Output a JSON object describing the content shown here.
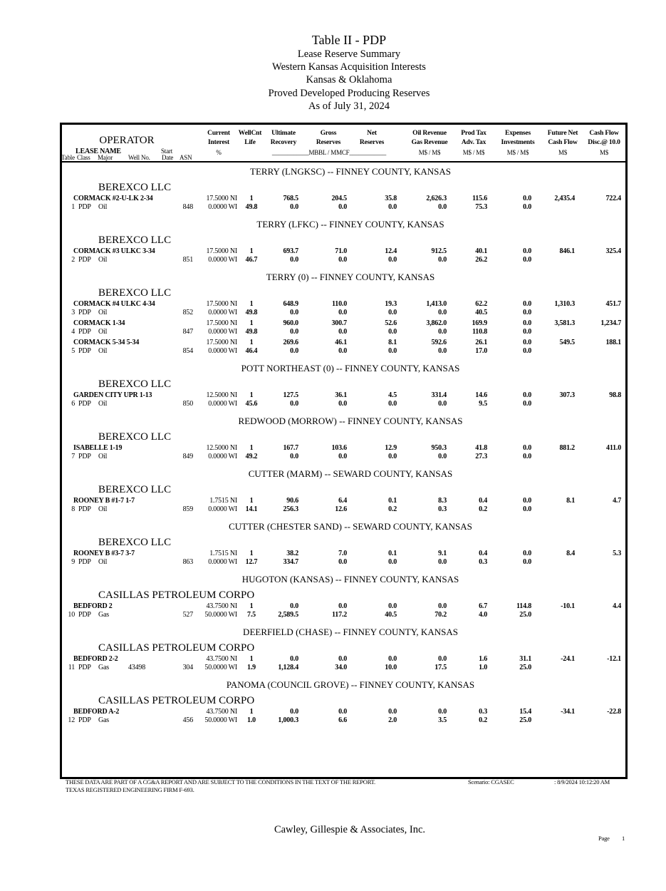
{
  "title": {
    "line1": "Table II - PDP",
    "line2": "Lease Reserve Summary",
    "line3": "Western Kansas Acquisition Interests",
    "line4": "Kansas & Oklahoma",
    "line5": "Proved Developed Producing Reserves",
    "line6": "As of July 31, 2024"
  },
  "header": {
    "operator": "OPERATOR",
    "lease_name": "LEASE  NAME",
    "start": "Start",
    "table": "Table",
    "class": "Class",
    "major": "Major",
    "well_no": "Well No.",
    "date": "Date",
    "asn": "ASN",
    "current": "Current",
    "interest": "Interest",
    "pct": "%",
    "wellcnt": "WellCnt",
    "life": "Life",
    "ultimate": "Ultimate",
    "recovery": "Recovery",
    "gross": "Gross",
    "reserves": "Reserves",
    "net": "Net",
    "net_reserves": "Reserves",
    "units": "____________MBBL / MMCF____________",
    "oil_rev": "Oil Revenue",
    "gas_rev": "Gas Revenue",
    "ms1": "M$ / M$",
    "prod_tax": "Prod Tax",
    "adv_tax": "Adv. Tax",
    "ms2": "M$ / M$",
    "expenses": "Expenses",
    "investments": "Investments",
    "ms3": "M$ / M$",
    "future_net": "Future Net",
    "cash_flow": "Cash Flow",
    "ms4": "M$",
    "cash_flow2": "Cash Flow",
    "disc": "Disc.@ 10.0",
    "ms5": "M$"
  },
  "sections": [
    {
      "field": "TERRY (LNGKSC) --  FINNEY COUNTY, KANSAS",
      "operator": "BEREXCO LLC",
      "wells": [
        {
          "name": "CORMACK #2-U-LK 2-34",
          "no": "1",
          "cls": "PDP",
          "major": "Oil",
          "wellno": "",
          "asn": "848",
          "ni": "17.5000  NI",
          "wi": "0.0000 WI",
          "cnt": "1",
          "life": "49.8",
          "ult": "768.5",
          "ult2": "0.0",
          "gross": "204.5",
          "gross2": "0.0",
          "net": "35.8",
          "net2": "0.0",
          "oil": "2,626.3",
          "gas": "0.0",
          "ptax": "115.6",
          "atax": "75.3",
          "exp": "0.0",
          "inv": "0.0",
          "fnc": "2,435.4",
          "disc": "722.4"
        }
      ]
    },
    {
      "field": "TERRY (LFKC) --  FINNEY COUNTY, KANSAS",
      "operator": "BEREXCO LLC",
      "wells": [
        {
          "name": "CORMACK #3 ULKC 3-34",
          "no": "2",
          "cls": "PDP",
          "major": "Oil",
          "wellno": "",
          "asn": "851",
          "ni": "17.5000  NI",
          "wi": "0.0000 WI",
          "cnt": "1",
          "life": "46.7",
          "ult": "693.7",
          "ult2": "0.0",
          "gross": "71.0",
          "gross2": "0.0",
          "net": "12.4",
          "net2": "0.0",
          "oil": "912.5",
          "gas": "0.0",
          "ptax": "40.1",
          "atax": "26.2",
          "exp": "0.0",
          "inv": "0.0",
          "fnc": "846.1",
          "disc": "325.4"
        }
      ]
    },
    {
      "field": "TERRY (0) --  FINNEY COUNTY, KANSAS",
      "operator": "BEREXCO LLC",
      "wells": [
        {
          "name": "CORMACK #4 ULKC 4-34",
          "no": "3",
          "cls": "PDP",
          "major": "Oil",
          "wellno": "",
          "asn": "852",
          "ni": "17.5000  NI",
          "wi": "0.0000 WI",
          "cnt": "1",
          "life": "49.8",
          "ult": "648.9",
          "ult2": "0.0",
          "gross": "110.0",
          "gross2": "0.0",
          "net": "19.3",
          "net2": "0.0",
          "oil": "1,413.0",
          "gas": "0.0",
          "ptax": "62.2",
          "atax": "40.5",
          "exp": "0.0",
          "inv": "0.0",
          "fnc": "1,310.3",
          "disc": "451.7"
        },
        {
          "name": "CORMACK 1-34",
          "no": "4",
          "cls": "PDP",
          "major": "Oil",
          "wellno": "",
          "asn": "847",
          "ni": "17.5000  NI",
          "wi": "0.0000 WI",
          "cnt": "1",
          "life": "49.8",
          "ult": "960.0",
          "ult2": "0.0",
          "gross": "300.7",
          "gross2": "0.0",
          "net": "52.6",
          "net2": "0.0",
          "oil": "3,862.0",
          "gas": "0.0",
          "ptax": "169.9",
          "atax": "110.8",
          "exp": "0.0",
          "inv": "0.0",
          "fnc": "3,581.3",
          "disc": "1,234.7"
        },
        {
          "name": "CORMACK 5-34 5-34",
          "no": "5",
          "cls": "PDP",
          "major": "Oil",
          "wellno": "",
          "asn": "854",
          "ni": "17.5000  NI",
          "wi": "0.0000 WI",
          "cnt": "1",
          "life": "46.4",
          "ult": "269.6",
          "ult2": "0.0",
          "gross": "46.1",
          "gross2": "0.0",
          "net": "8.1",
          "net2": "0.0",
          "oil": "592.6",
          "gas": "0.0",
          "ptax": "26.1",
          "atax": "17.0",
          "exp": "0.0",
          "inv": "0.0",
          "fnc": "549.5",
          "disc": "188.1"
        }
      ]
    },
    {
      "field": "POTT NORTHEAST (0) --  FINNEY COUNTY, KANSAS",
      "operator": "BEREXCO LLC",
      "wells": [
        {
          "name": "GARDEN CITY UPR 1-13",
          "no": "6",
          "cls": "PDP",
          "major": "Oil",
          "wellno": "",
          "asn": "850",
          "ni": "12.5000  NI",
          "wi": "0.0000 WI",
          "cnt": "1",
          "life": "45.6",
          "ult": "127.5",
          "ult2": "0.0",
          "gross": "36.1",
          "gross2": "0.0",
          "net": "4.5",
          "net2": "0.0",
          "oil": "331.4",
          "gas": "0.0",
          "ptax": "14.6",
          "atax": "9.5",
          "exp": "0.0",
          "inv": "0.0",
          "fnc": "307.3",
          "disc": "98.8"
        }
      ]
    },
    {
      "field": "REDWOOD (MORROW) --  FINNEY COUNTY, KANSAS",
      "operator": "BEREXCO LLC",
      "wells": [
        {
          "name": "ISABELLE 1-19",
          "no": "7",
          "cls": "PDP",
          "major": "Oil",
          "wellno": "",
          "asn": "849",
          "ni": "12.5000  NI",
          "wi": "0.0000 WI",
          "cnt": "1",
          "life": "49.2",
          "ult": "167.7",
          "ult2": "0.0",
          "gross": "103.6",
          "gross2": "0.0",
          "net": "12.9",
          "net2": "0.0",
          "oil": "950.3",
          "gas": "0.0",
          "ptax": "41.8",
          "atax": "27.3",
          "exp": "0.0",
          "inv": "0.0",
          "fnc": "881.2",
          "disc": "411.0"
        }
      ]
    },
    {
      "field": "CUTTER (MARM) --  SEWARD COUNTY, KANSAS",
      "operator": "BEREXCO LLC",
      "wells": [
        {
          "name": "ROONEY B #1-7 1-7",
          "no": "8",
          "cls": "PDP",
          "major": "Oil",
          "wellno": "",
          "asn": "859",
          "ni": "1.7515  NI",
          "wi": "0.0000 WI",
          "cnt": "1",
          "life": "14.1",
          "ult": "90.6",
          "ult2": "256.3",
          "gross": "6.4",
          "gross2": "12.6",
          "net": "0.1",
          "net2": "0.2",
          "oil": "8.3",
          "gas": "0.3",
          "ptax": "0.4",
          "atax": "0.2",
          "exp": "0.0",
          "inv": "0.0",
          "fnc": "8.1",
          "disc": "4.7"
        }
      ]
    },
    {
      "field": "CUTTER (CHESTER SAND) --  SEWARD COUNTY, KANSAS",
      "operator": "BEREXCO LLC",
      "wells": [
        {
          "name": "ROONEY B #3-7 3-7",
          "no": "9",
          "cls": "PDP",
          "major": "Oil",
          "wellno": "",
          "asn": "863",
          "ni": "1.7515  NI",
          "wi": "0.0000 WI",
          "cnt": "1",
          "life": "12.7",
          "ult": "38.2",
          "ult2": "334.7",
          "gross": "7.0",
          "gross2": "0.0",
          "net": "0.1",
          "net2": "0.0",
          "oil": "9.1",
          "gas": "0.0",
          "ptax": "0.4",
          "atax": "0.3",
          "exp": "0.0",
          "inv": "0.0",
          "fnc": "8.4",
          "disc": "5.3"
        }
      ]
    },
    {
      "field": "HUGOTON (KANSAS) --  FINNEY COUNTY, KANSAS",
      "operator": "CASILLAS PETROLEUM CORPO",
      "wells": [
        {
          "name": "BEDFORD 2",
          "no": "10",
          "cls": "PDP",
          "major": "Gas",
          "wellno": "",
          "asn": "527",
          "ni": "43.7500  NI",
          "wi": "50.0000 WI",
          "cnt": "1",
          "life": "7.5",
          "ult": "0.0",
          "ult2": "2,589.5",
          "gross": "0.0",
          "gross2": "117.2",
          "net": "0.0",
          "net2": "40.5",
          "oil": "0.0",
          "gas": "70.2",
          "ptax": "6.7",
          "atax": "4.0",
          "exp": "114.8",
          "inv": "25.0",
          "fnc": "-10.1",
          "disc": "4.4"
        }
      ]
    },
    {
      "field": "DEERFIELD (CHASE) --  FINNEY COUNTY, KANSAS",
      "operator": "CASILLAS PETROLEUM CORPO",
      "wells": [
        {
          "name": "BEDFORD 2-2",
          "no": "11",
          "cls": "PDP",
          "major": "Gas",
          "wellno": "43498",
          "asn": "304",
          "ni": "43.7500  NI",
          "wi": "50.0000 WI",
          "cnt": "1",
          "life": "1.9",
          "ult": "0.0",
          "ult2": "1,128.4",
          "gross": "0.0",
          "gross2": "34.0",
          "net": "0.0",
          "net2": "10.0",
          "oil": "0.0",
          "gas": "17.5",
          "ptax": "1.6",
          "atax": "1.0",
          "exp": "31.1",
          "inv": "25.0",
          "fnc": "-24.1",
          "disc": "-12.1"
        }
      ]
    },
    {
      "field": "PANOMA (COUNCIL GROVE) --  FINNEY COUNTY, KANSAS",
      "operator": "CASILLAS PETROLEUM CORPO",
      "wells": [
        {
          "name": "BEDFORD A-2",
          "no": "12",
          "cls": "PDP",
          "major": "Gas",
          "wellno": "",
          "asn": "456",
          "ni": "43.7500  NI",
          "wi": "50.0000 WI",
          "cnt": "1",
          "life": "1.0",
          "ult": "0.0",
          "ult2": "1,000.3",
          "gross": "0.0",
          "gross2": "6.6",
          "net": "0.0",
          "net2": "2.0",
          "oil": "0.0",
          "gas": "3.5",
          "ptax": "0.3",
          "atax": "0.2",
          "exp": "15.4",
          "inv": "25.0",
          "fnc": "-34.1",
          "disc": "-22.8"
        }
      ]
    }
  ],
  "footer": {
    "disclaimer": "THESE DATA ARE PART OF A CG&A REPORT AND ARE SUBJECT TO THE CONDITIONS IN THE TEXT OF THE REPORT.",
    "firm": "TEXAS REGISTERED ENGINEERING FIRM F-693.",
    "scenario": "Scenario: CGASEC",
    "timestamp": ": 8/9/2024  10:12:20 AM",
    "company": "Cawley, Gillespie & Associates, Inc.",
    "page_label": "Page",
    "page_number": "1"
  }
}
